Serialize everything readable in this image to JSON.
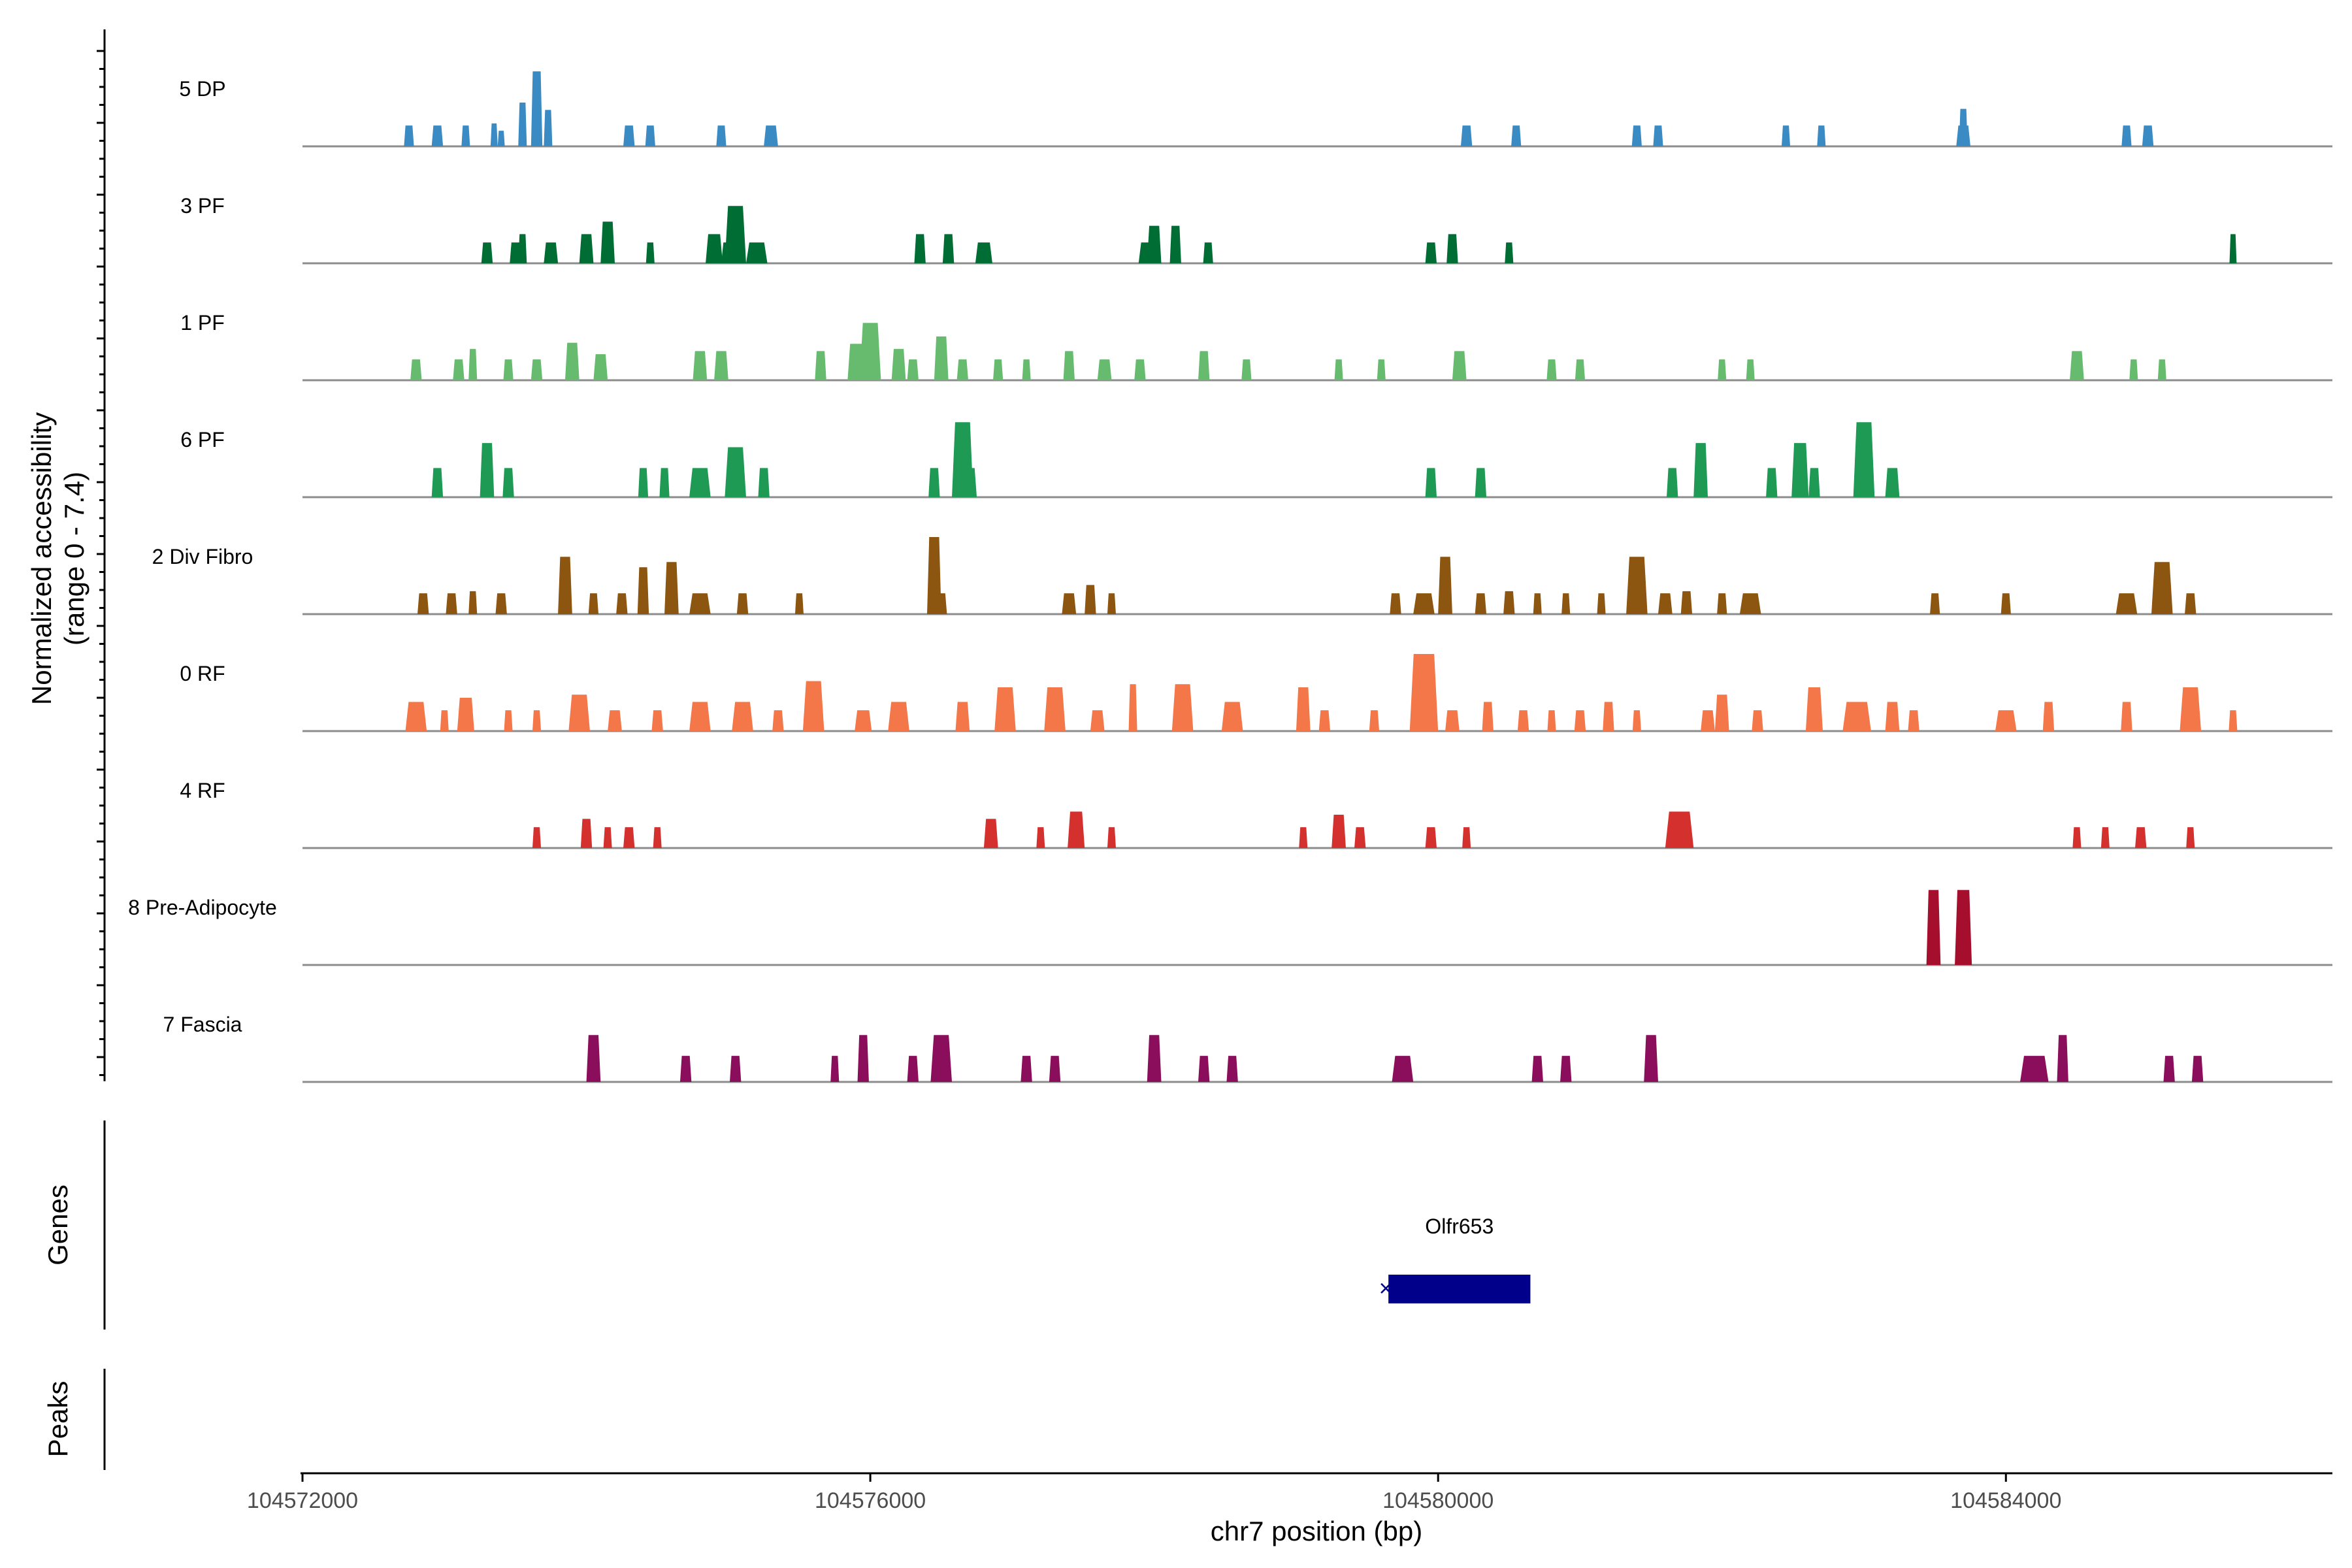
{
  "chart_data": {
    "type": "area",
    "title": "",
    "ylabel_line1": "Normalized accessibility",
    "ylabel_line2": "(range 0 - 7.4)",
    "y_range": [
      0,
      7.4
    ],
    "xlabel": "chr7 position (bp)",
    "xlim": [
      104572000,
      104586300
    ],
    "x_ticks": [
      104572000,
      104576000,
      104580000,
      104584000
    ],
    "x_tick_labels": [
      "104572000",
      "104576000",
      "104580000",
      "104584000"
    ],
    "tracks": [
      {
        "name": "5 DP",
        "color": "#3a8ac3",
        "peaks": [
          [
            104572750,
            70,
            2.0
          ],
          [
            104572950,
            80,
            2.0
          ],
          [
            104573150,
            60,
            2.0
          ],
          [
            104573350,
            50,
            2.2
          ],
          [
            104573400,
            50,
            1.5
          ],
          [
            104573650,
            80,
            7.2
          ],
          [
            104573550,
            60,
            4.2
          ],
          [
            104573730,
            60,
            3.5
          ],
          [
            104574300,
            80,
            2.0
          ],
          [
            104574450,
            70,
            2.0
          ],
          [
            104574950,
            70,
            2.0
          ],
          [
            104575300,
            100,
            2.0
          ],
          [
            104580200,
            80,
            2.0
          ],
          [
            104580550,
            70,
            2.0
          ],
          [
            104581400,
            70,
            2.0
          ],
          [
            104581550,
            70,
            2.0
          ],
          [
            104582450,
            60,
            2.0
          ],
          [
            104582700,
            60,
            2.0
          ],
          [
            104583700,
            60,
            3.6
          ],
          [
            104583700,
            100,
            2.0
          ],
          [
            104584850,
            70,
            2.0
          ],
          [
            104585000,
            80,
            2.0
          ]
        ]
      },
      {
        "name": "3 PF",
        "color": "#006d35",
        "peaks": [
          [
            104573300,
            80,
            2.0
          ],
          [
            104573500,
            80,
            2.0
          ],
          [
            104573550,
            60,
            2.8
          ],
          [
            104573750,
            100,
            2.0
          ],
          [
            104574000,
            100,
            2.8
          ],
          [
            104574150,
            100,
            4.0
          ],
          [
            104574450,
            60,
            2.0
          ],
          [
            104574900,
            120,
            2.8
          ],
          [
            104575050,
            150,
            5.5
          ],
          [
            104575200,
            150,
            2.0
          ],
          [
            104575000,
            100,
            2.0
          ],
          [
            104576350,
            80,
            2.8
          ],
          [
            104576550,
            80,
            2.8
          ],
          [
            104576800,
            120,
            2.0
          ],
          [
            104577950,
            120,
            2.0
          ],
          [
            104578000,
            100,
            3.6
          ],
          [
            104578150,
            80,
            3.6
          ],
          [
            104578380,
            70,
            2.0
          ],
          [
            104579950,
            80,
            2.0
          ],
          [
            104580100,
            80,
            2.8
          ],
          [
            104580500,
            60,
            2.0
          ],
          [
            104585600,
            50,
            2.8
          ]
        ]
      },
      {
        "name": "1 PF",
        "color": "#67bb6e",
        "peaks": [
          [
            104572800,
            80,
            2.0
          ],
          [
            104573100,
            80,
            2.0
          ],
          [
            104573200,
            60,
            3.0
          ],
          [
            104573450,
            70,
            2.0
          ],
          [
            104573650,
            80,
            2.0
          ],
          [
            104573900,
            100,
            3.6
          ],
          [
            104574100,
            100,
            2.5
          ],
          [
            104574800,
            100,
            2.8
          ],
          [
            104574950,
            100,
            2.8
          ],
          [
            104575650,
            80,
            2.8
          ],
          [
            104575900,
            120,
            3.5
          ],
          [
            104576000,
            150,
            5.5
          ],
          [
            104576200,
            100,
            3.0
          ],
          [
            104576300,
            80,
            2.0
          ],
          [
            104576500,
            100,
            4.2
          ],
          [
            104576650,
            80,
            2.0
          ],
          [
            104576900,
            70,
            2.0
          ],
          [
            104577100,
            60,
            2.0
          ],
          [
            104577400,
            80,
            2.8
          ],
          [
            104577650,
            100,
            2.0
          ],
          [
            104577900,
            80,
            2.0
          ],
          [
            104578350,
            80,
            2.8
          ],
          [
            104578650,
            70,
            2.0
          ],
          [
            104579300,
            60,
            2.0
          ],
          [
            104579600,
            60,
            2.0
          ],
          [
            104580150,
            100,
            2.8
          ],
          [
            104580800,
            70,
            2.0
          ],
          [
            104581000,
            70,
            2.0
          ],
          [
            104582000,
            60,
            2.0
          ],
          [
            104582200,
            60,
            2.0
          ],
          [
            104584500,
            100,
            2.8
          ],
          [
            104584900,
            60,
            2.0
          ],
          [
            104585100,
            60,
            2.0
          ]
        ]
      },
      {
        "name": "6 PF",
        "color": "#1e9a54",
        "peaks": [
          [
            104572950,
            80,
            2.8
          ],
          [
            104573300,
            100,
            5.2
          ],
          [
            104573450,
            80,
            2.8
          ],
          [
            104574400,
            70,
            2.8
          ],
          [
            104574550,
            70,
            2.8
          ],
          [
            104574800,
            150,
            2.8
          ],
          [
            104575050,
            150,
            4.8
          ],
          [
            104575250,
            80,
            2.8
          ],
          [
            104576450,
            80,
            2.8
          ],
          [
            104576650,
            150,
            7.2
          ],
          [
            104576700,
            100,
            2.8
          ],
          [
            104579950,
            80,
            2.8
          ],
          [
            104580300,
            80,
            2.8
          ],
          [
            104581650,
            80,
            2.8
          ],
          [
            104581850,
            100,
            5.2
          ],
          [
            104582350,
            80,
            2.8
          ],
          [
            104582550,
            120,
            5.2
          ],
          [
            104582650,
            80,
            2.8
          ],
          [
            104583000,
            150,
            7.2
          ],
          [
            104583200,
            100,
            2.8
          ]
        ]
      },
      {
        "name": "2 Div Fibro",
        "color": "#8c5510",
        "peaks": [
          [
            104572850,
            80,
            2.0
          ],
          [
            104573050,
            80,
            2.0
          ],
          [
            104573200,
            60,
            2.2
          ],
          [
            104573400,
            80,
            2.0
          ],
          [
            104573850,
            100,
            5.5
          ],
          [
            104574050,
            70,
            2.0
          ],
          [
            104574250,
            80,
            2.0
          ],
          [
            104574400,
            80,
            4.5
          ],
          [
            104574600,
            100,
            5.0
          ],
          [
            104574800,
            150,
            2.0
          ],
          [
            104575100,
            80,
            2.0
          ],
          [
            104575500,
            60,
            2.0
          ],
          [
            104576450,
            100,
            7.4
          ],
          [
            104576500,
            80,
            2.0
          ],
          [
            104577400,
            100,
            2.0
          ],
          [
            104577550,
            80,
            2.8
          ],
          [
            104577700,
            60,
            2.0
          ],
          [
            104579700,
            80,
            2.0
          ],
          [
            104579900,
            150,
            2.0
          ],
          [
            104580050,
            100,
            5.5
          ],
          [
            104580300,
            80,
            2.0
          ],
          [
            104580500,
            80,
            2.2
          ],
          [
            104580700,
            60,
            2.0
          ],
          [
            104580900,
            60,
            2.0
          ],
          [
            104581150,
            60,
            2.0
          ],
          [
            104581400,
            150,
            5.5
          ],
          [
            104581600,
            100,
            2.0
          ],
          [
            104581750,
            80,
            2.2
          ],
          [
            104582000,
            70,
            2.0
          ],
          [
            104582200,
            150,
            2.0
          ],
          [
            104583500,
            70,
            2.0
          ],
          [
            104584000,
            70,
            2.0
          ],
          [
            104584850,
            150,
            2.0
          ],
          [
            104585100,
            150,
            5.0
          ],
          [
            104585300,
            80,
            2.0
          ]
        ]
      },
      {
        "name": "0 RF",
        "color": "#f47749",
        "peaks": [
          [
            104572800,
            150,
            2.8
          ],
          [
            104573000,
            60,
            2.0
          ],
          [
            104573150,
            120,
            3.2
          ],
          [
            104573450,
            60,
            2.0
          ],
          [
            104573650,
            60,
            2.0
          ],
          [
            104573950,
            150,
            3.5
          ],
          [
            104574200,
            100,
            2.0
          ],
          [
            104574500,
            80,
            2.0
          ],
          [
            104574800,
            150,
            2.8
          ],
          [
            104575100,
            150,
            2.8
          ],
          [
            104575350,
            80,
            2.0
          ],
          [
            104575600,
            150,
            4.8
          ],
          [
            104575950,
            120,
            2.0
          ],
          [
            104576200,
            150,
            2.8
          ],
          [
            104576650,
            100,
            2.8
          ],
          [
            104576950,
            150,
            4.2
          ],
          [
            104577300,
            150,
            4.2
          ],
          [
            104577600,
            100,
            2.0
          ],
          [
            104577850,
            60,
            4.5
          ],
          [
            104578200,
            150,
            4.5
          ],
          [
            104578550,
            150,
            2.8
          ],
          [
            104579050,
            100,
            4.2
          ],
          [
            104579200,
            80,
            2.0
          ],
          [
            104579550,
            70,
            2.0
          ],
          [
            104579900,
            200,
            7.4
          ],
          [
            104580100,
            100,
            2.0
          ],
          [
            104580350,
            80,
            2.8
          ],
          [
            104580600,
            80,
            2.0
          ],
          [
            104580800,
            60,
            2.0
          ],
          [
            104581000,
            80,
            2.0
          ],
          [
            104581200,
            80,
            2.8
          ],
          [
            104581400,
            60,
            2.0
          ],
          [
            104581900,
            100,
            2.0
          ],
          [
            104582000,
            100,
            3.5
          ],
          [
            104582250,
            80,
            2.0
          ],
          [
            104582650,
            120,
            4.2
          ],
          [
            104582950,
            200,
            2.8
          ],
          [
            104583200,
            100,
            2.8
          ],
          [
            104583350,
            80,
            2.0
          ],
          [
            104584000,
            150,
            2.0
          ],
          [
            104584300,
            80,
            2.8
          ],
          [
            104584850,
            80,
            2.8
          ],
          [
            104585300,
            150,
            4.2
          ],
          [
            104585600,
            60,
            2.0
          ]
        ]
      },
      {
        "name": "4 RF",
        "color": "#d3302e",
        "peaks": [
          [
            104573650,
            60,
            2.0
          ],
          [
            104574000,
            80,
            2.8
          ],
          [
            104574150,
            60,
            2.0
          ],
          [
            104574300,
            80,
            2.0
          ],
          [
            104574500,
            60,
            2.0
          ],
          [
            104576850,
            100,
            2.8
          ],
          [
            104577200,
            60,
            2.0
          ],
          [
            104577450,
            120,
            3.5
          ],
          [
            104577700,
            60,
            2.0
          ],
          [
            104579050,
            60,
            2.0
          ],
          [
            104579300,
            100,
            3.2
          ],
          [
            104579450,
            80,
            2.0
          ],
          [
            104579950,
            80,
            2.0
          ],
          [
            104580200,
            60,
            2.0
          ],
          [
            104581700,
            200,
            3.5
          ],
          [
            104584500,
            60,
            2.0
          ],
          [
            104584700,
            60,
            2.0
          ],
          [
            104584950,
            80,
            2.0
          ],
          [
            104585300,
            60,
            2.0
          ]
        ]
      },
      {
        "name": "8 Pre-Adipocyte",
        "color": "#a50f2d",
        "peaks": [
          [
            104583490,
            100,
            7.2
          ],
          [
            104583700,
            120,
            7.2
          ]
        ]
      },
      {
        "name": "7 Fascia",
        "color": "#8a0e5b",
        "peaks": [
          [
            104574050,
            100,
            4.5
          ],
          [
            104574700,
            80,
            2.5
          ],
          [
            104575050,
            80,
            2.5
          ],
          [
            104575750,
            60,
            2.5
          ],
          [
            104575950,
            80,
            4.5
          ],
          [
            104576300,
            80,
            2.5
          ],
          [
            104576500,
            150,
            4.5
          ],
          [
            104577100,
            80,
            2.5
          ],
          [
            104577300,
            80,
            2.5
          ],
          [
            104578000,
            100,
            4.5
          ],
          [
            104578350,
            80,
            2.5
          ],
          [
            104578550,
            80,
            2.5
          ],
          [
            104579750,
            150,
            2.5
          ],
          [
            104580700,
            80,
            2.5
          ],
          [
            104580900,
            80,
            2.5
          ],
          [
            104581500,
            100,
            4.5
          ],
          [
            104584200,
            200,
            2.5
          ],
          [
            104584400,
            80,
            4.5
          ],
          [
            104585150,
            80,
            2.5
          ],
          [
            104585350,
            80,
            2.5
          ]
        ]
      }
    ],
    "genes_label": "Genes",
    "gene": {
      "name": "Olfr653",
      "start": 104579650,
      "end": 104580650,
      "strand_glyph": "×",
      "color": "#00008b"
    },
    "peaks_label": "Peaks"
  }
}
